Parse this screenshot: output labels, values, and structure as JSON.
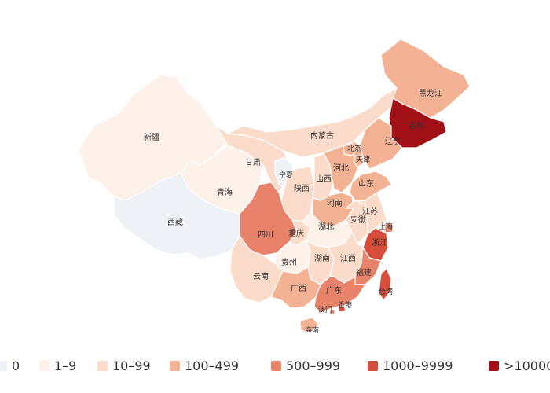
{
  "legend": [
    {
      "label": "0",
      "color": "#eef2f6"
    },
    {
      "label": "1–9",
      "color": "#fdf1ea"
    },
    {
      "label": "10–99",
      "color": "#fbdcca"
    },
    {
      "label": "100–499",
      "color": "#f3b294"
    },
    {
      "label": "500–999",
      "color": "#e9826a"
    },
    {
      "label": "1000–9999",
      "color": "#d64d3b"
    },
    {
      "label": ">10000",
      "color": "#a10f17"
    }
  ],
  "provinces": [
    {
      "id": "xinjiang",
      "label": "新疆",
      "color": "#fdf1ea"
    },
    {
      "id": "xizang",
      "label": "西藏",
      "color": "#eef2f6"
    },
    {
      "id": "qinghai",
      "label": "青海",
      "color": "#fdf1ea"
    },
    {
      "id": "gansu",
      "label": "甘肃",
      "color": "#fbdcca"
    },
    {
      "id": "neimenggu",
      "label": "内蒙古",
      "color": "#fbdcca"
    },
    {
      "id": "heilongjiang",
      "label": "黑龙江",
      "color": "#f3b294"
    },
    {
      "id": "jilin",
      "label": "吉林",
      "color": "#a10f17"
    },
    {
      "id": "liaoning",
      "label": "辽宁",
      "color": "#f3b294"
    },
    {
      "id": "ningxia",
      "label": "宁夏",
      "color": "#eef2f6"
    },
    {
      "id": "shaanxi",
      "label": "陕西",
      "color": "#fbdcca"
    },
    {
      "id": "shanxi",
      "label": "山西",
      "color": "#fbdcca"
    },
    {
      "id": "hebei",
      "label": "河北",
      "color": "#f3b294"
    },
    {
      "id": "beijing",
      "label": "北京",
      "color": "#f3b294"
    },
    {
      "id": "tianjin",
      "label": "天津",
      "color": "#f3b294"
    },
    {
      "id": "shandong",
      "label": "山东",
      "color": "#f3b294"
    },
    {
      "id": "henan",
      "label": "河南",
      "color": "#f3b294"
    },
    {
      "id": "sichuan",
      "label": "四川",
      "color": "#e9826a"
    },
    {
      "id": "chongqing",
      "label": "重庆",
      "color": "#fbdcca"
    },
    {
      "id": "hubei",
      "label": "湖北",
      "color": "#fdf1ea"
    },
    {
      "id": "anhui",
      "label": "安徽",
      "color": "#fbdcca"
    },
    {
      "id": "jiangsu",
      "label": "江苏",
      "color": "#fbdcca"
    },
    {
      "id": "shanghai",
      "label": "上海",
      "color": "#e9826a"
    },
    {
      "id": "zhejiang",
      "label": "浙江",
      "color": "#d64d3b"
    },
    {
      "id": "guizhou",
      "label": "贵州",
      "color": "#fdf1ea"
    },
    {
      "id": "hunan",
      "label": "湖南",
      "color": "#fbdcca"
    },
    {
      "id": "jiangxi",
      "label": "江西",
      "color": "#fbdcca"
    },
    {
      "id": "fujian",
      "label": "福建",
      "color": "#e9826a"
    },
    {
      "id": "yunnan",
      "label": "云南",
      "color": "#fbdcca"
    },
    {
      "id": "guangxi",
      "label": "广西",
      "color": "#f3b294"
    },
    {
      "id": "guangdong",
      "label": "广东",
      "color": "#e9826a"
    },
    {
      "id": "xianggang",
      "label": "香港",
      "color": "#d64d3b"
    },
    {
      "id": "aomen",
      "label": "澳门",
      "color": "#e9826a"
    },
    {
      "id": "taiwan",
      "label": "台湾",
      "color": "#d64d3b"
    },
    {
      "id": "hainan",
      "label": "海南",
      "color": "#f3b294"
    }
  ]
}
